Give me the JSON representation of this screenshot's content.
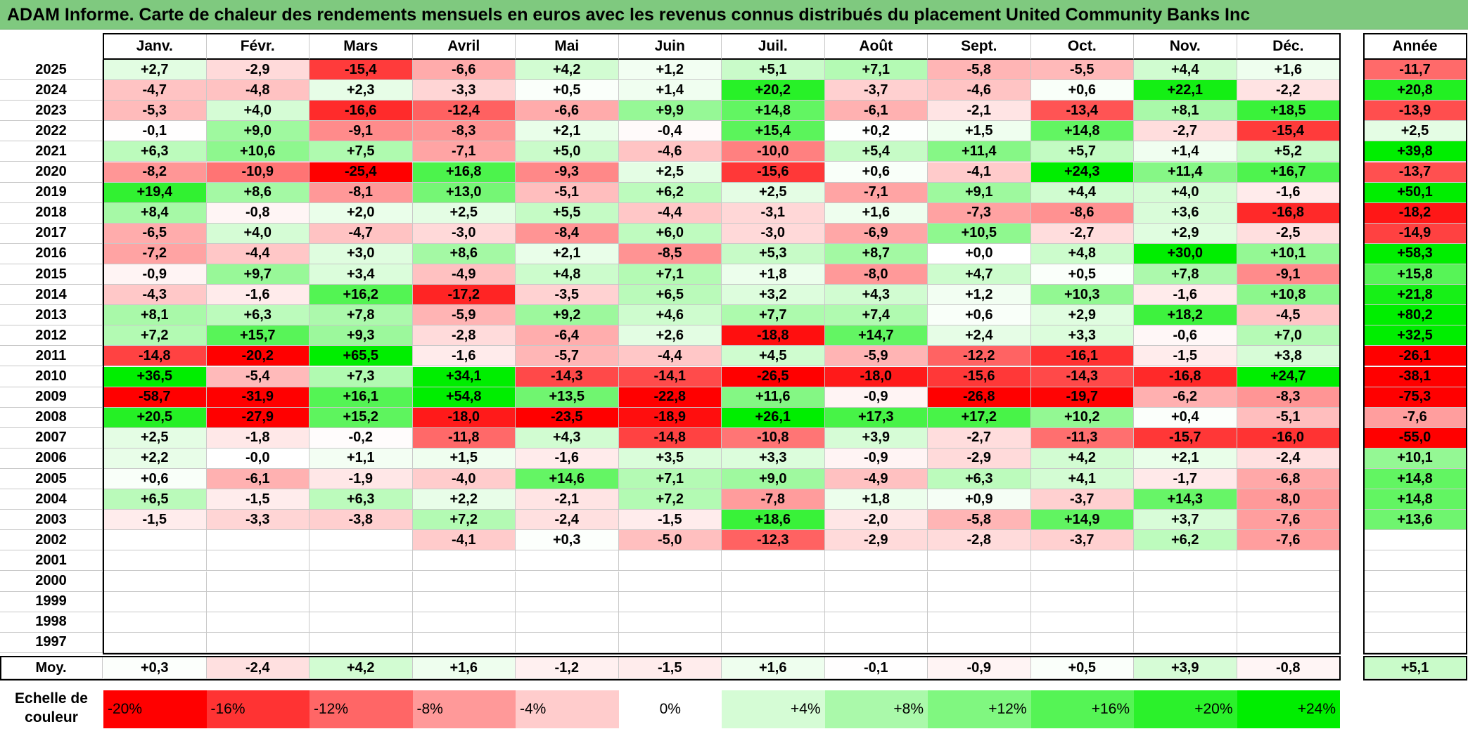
{
  "title": "ADAM Informe. Carte de chaleur des rendements mensuels en euros avec les revenus connus distribués du placement United Community Banks Inc",
  "chart_data": {
    "type": "heatmap",
    "title": "ADAM Informe. Carte de chaleur des rendements mensuels en euros avec les revenus connus distribués du placement United Community Banks Inc",
    "columns": [
      "Janv.",
      "Févr.",
      "Mars",
      "Avril",
      "Mai",
      "Juin",
      "Juil.",
      "Août",
      "Sept.",
      "Oct.",
      "Nov.",
      "Déc."
    ],
    "annual_header": "Année",
    "rows": [
      {
        "year": "2025",
        "values": [
          "+2,7",
          "-2,9",
          "-15,4",
          "-6,6",
          "+4,2",
          "+1,2",
          "+5,1",
          "+7,1",
          "-5,8",
          "-5,5",
          "+4,4",
          "+1,6"
        ],
        "annual": "-11,7"
      },
      {
        "year": "2024",
        "values": [
          "-4,7",
          "-4,8",
          "+2,3",
          "-3,3",
          "+0,5",
          "+1,4",
          "+20,2",
          "-3,7",
          "-4,6",
          "+0,6",
          "+22,1",
          "-2,2"
        ],
        "annual": "+20,8"
      },
      {
        "year": "2023",
        "values": [
          "-5,3",
          "+4,0",
          "-16,6",
          "-12,4",
          "-6,6",
          "+9,9",
          "+14,8",
          "-6,1",
          "-2,1",
          "-13,4",
          "+8,1",
          "+18,5"
        ],
        "annual": "-13,9"
      },
      {
        "year": "2022",
        "values": [
          "-0,1",
          "+9,0",
          "-9,1",
          "-8,3",
          "+2,1",
          "-0,4",
          "+15,4",
          "+0,2",
          "+1,5",
          "+14,8",
          "-2,7",
          "-15,4"
        ],
        "annual": "+2,5"
      },
      {
        "year": "2021",
        "values": [
          "+6,3",
          "+10,6",
          "+7,5",
          "-7,1",
          "+5,0",
          "-4,6",
          "-10,0",
          "+5,4",
          "+11,4",
          "+5,7",
          "+1,4",
          "+5,2"
        ],
        "annual": "+39,8"
      },
      {
        "year": "2020",
        "values": [
          "-8,2",
          "-10,9",
          "-25,4",
          "+16,8",
          "-9,3",
          "+2,5",
          "-15,6",
          "+0,6",
          "-4,1",
          "+24,3",
          "+11,4",
          "+16,7"
        ],
        "annual": "-13,7"
      },
      {
        "year": "2019",
        "values": [
          "+19,4",
          "+8,6",
          "-8,1",
          "+13,0",
          "-5,1",
          "+6,2",
          "+2,5",
          "-7,1",
          "+9,1",
          "+4,4",
          "+4,0",
          "-1,6"
        ],
        "annual": "+50,1"
      },
      {
        "year": "2018",
        "values": [
          "+8,4",
          "-0,8",
          "+2,0",
          "+2,5",
          "+5,5",
          "-4,4",
          "-3,1",
          "+1,6",
          "-7,3",
          "-8,6",
          "+3,6",
          "-16,8"
        ],
        "annual": "-18,2"
      },
      {
        "year": "2017",
        "values": [
          "-6,5",
          "+4,0",
          "-4,7",
          "-3,0",
          "-8,4",
          "+6,0",
          "-3,0",
          "-6,9",
          "+10,5",
          "-2,7",
          "+2,9",
          "-2,5"
        ],
        "annual": "-14,9"
      },
      {
        "year": "2016",
        "values": [
          "-7,2",
          "-4,4",
          "+3,0",
          "+8,6",
          "+2,1",
          "-8,5",
          "+5,3",
          "+8,7",
          "+0,0",
          "+4,8",
          "+30,0",
          "+10,1"
        ],
        "annual": "+58,3"
      },
      {
        "year": "2015",
        "values": [
          "-0,9",
          "+9,7",
          "+3,4",
          "-4,9",
          "+4,8",
          "+7,1",
          "+1,8",
          "-8,0",
          "+4,7",
          "+0,5",
          "+7,8",
          "-9,1"
        ],
        "annual": "+15,8"
      },
      {
        "year": "2014",
        "values": [
          "-4,3",
          "-1,6",
          "+16,2",
          "-17,2",
          "-3,5",
          "+6,5",
          "+3,2",
          "+4,3",
          "+1,2",
          "+10,3",
          "-1,6",
          "+10,8"
        ],
        "annual": "+21,8"
      },
      {
        "year": "2013",
        "values": [
          "+8,1",
          "+6,3",
          "+7,8",
          "-5,9",
          "+9,2",
          "+4,6",
          "+7,7",
          "+7,4",
          "+0,6",
          "+2,9",
          "+18,2",
          "-4,5"
        ],
        "annual": "+80,2"
      },
      {
        "year": "2012",
        "values": [
          "+7,2",
          "+15,7",
          "+9,3",
          "-2,8",
          "-6,4",
          "+2,6",
          "-18,8",
          "+14,7",
          "+2,4",
          "+3,3",
          "-0,6",
          "+7,0"
        ],
        "annual": "+32,5"
      },
      {
        "year": "2011",
        "values": [
          "-14,8",
          "-20,2",
          "+65,5",
          "-1,6",
          "-5,7",
          "-4,4",
          "+4,5",
          "-5,9",
          "-12,2",
          "-16,1",
          "-1,5",
          "+3,8"
        ],
        "annual": "-26,1"
      },
      {
        "year": "2010",
        "values": [
          "+36,5",
          "-5,4",
          "+7,3",
          "+34,1",
          "-14,3",
          "-14,1",
          "-26,5",
          "-18,0",
          "-15,6",
          "-14,3",
          "-16,8",
          "+24,7"
        ],
        "annual": "-38,1"
      },
      {
        "year": "2009",
        "values": [
          "-58,7",
          "-31,9",
          "+16,1",
          "+54,8",
          "+13,5",
          "-22,8",
          "+11,6",
          "-0,9",
          "-26,8",
          "-19,7",
          "-6,2",
          "-8,3"
        ],
        "annual": "-75,3"
      },
      {
        "year": "2008",
        "values": [
          "+20,5",
          "-27,9",
          "+15,2",
          "-18,0",
          "-23,5",
          "-18,9",
          "+26,1",
          "+17,3",
          "+17,2",
          "+10,2",
          "+0,4",
          "-5,1"
        ],
        "annual": "-7,6"
      },
      {
        "year": "2007",
        "values": [
          "+2,5",
          "-1,8",
          "-0,2",
          "-11,8",
          "+4,3",
          "-14,8",
          "-10,8",
          "+3,9",
          "-2,7",
          "-11,3",
          "-15,7",
          "-16,0"
        ],
        "annual": "-55,0"
      },
      {
        "year": "2006",
        "values": [
          "+2,2",
          "-0,0",
          "+1,1",
          "+1,5",
          "-1,6",
          "+3,5",
          "+3,3",
          "-0,9",
          "-2,9",
          "+4,2",
          "+2,1",
          "-2,4"
        ],
        "annual": "+10,1"
      },
      {
        "year": "2005",
        "values": [
          "+0,6",
          "-6,1",
          "-1,9",
          "-4,0",
          "+14,6",
          "+7,1",
          "+9,0",
          "-4,9",
          "+6,3",
          "+4,1",
          "-1,7",
          "-6,8"
        ],
        "annual": "+14,8"
      },
      {
        "year": "2004",
        "values": [
          "+6,5",
          "-1,5",
          "+6,3",
          "+2,2",
          "-2,1",
          "+7,2",
          "-7,8",
          "+1,8",
          "+0,9",
          "-3,7",
          "+14,3",
          "-8,0"
        ],
        "annual": "+14,8"
      },
      {
        "year": "2003",
        "values": [
          "-1,5",
          "-3,3",
          "-3,8",
          "+7,2",
          "-2,4",
          "-1,5",
          "+18,6",
          "-2,0",
          "-5,8",
          "+14,9",
          "+3,7",
          "-7,6"
        ],
        "annual": "+13,6"
      },
      {
        "year": "2002",
        "values": [
          "",
          "",
          "",
          "-4,1",
          "+0,3",
          "-5,0",
          "-12,3",
          "-2,9",
          "-2,8",
          "-3,7",
          "+6,2",
          "-7,6"
        ],
        "annual": ""
      },
      {
        "year": "2001",
        "values": [
          "",
          "",
          "",
          "",
          "",
          "",
          "",
          "",
          "",
          "",
          "",
          ""
        ],
        "annual": ""
      },
      {
        "year": "2000",
        "values": [
          "",
          "",
          "",
          "",
          "",
          "",
          "",
          "",
          "",
          "",
          "",
          ""
        ],
        "annual": ""
      },
      {
        "year": "1999",
        "values": [
          "",
          "",
          "",
          "",
          "",
          "",
          "",
          "",
          "",
          "",
          "",
          ""
        ],
        "annual": ""
      },
      {
        "year": "1998",
        "values": [
          "",
          "",
          "",
          "",
          "",
          "",
          "",
          "",
          "",
          "",
          "",
          ""
        ],
        "annual": ""
      },
      {
        "year": "1997",
        "values": [
          "",
          "",
          "",
          "",
          "",
          "",
          "",
          "",
          "",
          "",
          "",
          ""
        ],
        "annual": ""
      }
    ],
    "average": {
      "label": "Moy.",
      "values": [
        "+0,3",
        "-2,4",
        "+4,2",
        "+1,6",
        "-1,2",
        "-1,5",
        "+1,6",
        "-0,1",
        "-0,9",
        "+0,5",
        "+3,9",
        "-0,8"
      ],
      "annual": "+5,1"
    },
    "legend": {
      "label": "Echelle de couleur",
      "items": [
        {
          "label": "-20%",
          "value": -20
        },
        {
          "label": "-16%",
          "value": -16
        },
        {
          "label": "-12%",
          "value": -12
        },
        {
          "label": "-8%",
          "value": -8
        },
        {
          "label": "-4%",
          "value": -4
        },
        {
          "label": "0%",
          "value": 0
        },
        {
          "label": "+4%",
          "value": 4
        },
        {
          "label": "+8%",
          "value": 8
        },
        {
          "label": "+12%",
          "value": 12
        },
        {
          "label": "+16%",
          "value": 16
        },
        {
          "label": "+20%",
          "value": 20
        },
        {
          "label": "+24%",
          "value": 24
        }
      ]
    },
    "colors": {
      "negative": "#ff0000",
      "positive": "#00ee00",
      "neutral": "#ffffff",
      "title_bg": "#7fc97f"
    }
  }
}
